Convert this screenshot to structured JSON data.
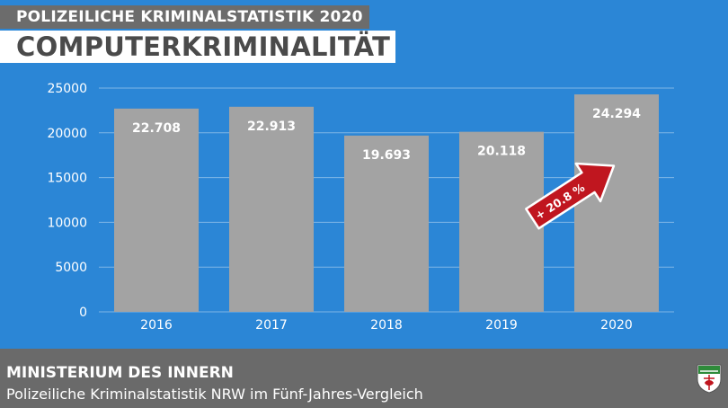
{
  "header": {
    "kicker": "POLIZEILICHE KRIMINALSTATISTIK 2020",
    "title": "COMPUTERKRIMINALITÄT"
  },
  "footer": {
    "ministry": "MINISTERIUM DES INNERN",
    "subline": "Polizeiliche Kriminalstatistik NRW im Fünf-Jahres-Vergleich",
    "crest_icon": "nrw-coat-of-arms-icon"
  },
  "colors": {
    "background": "#2b86d6",
    "bar": "#a3a3a3",
    "arrow": "#c0161f",
    "footer": "#6a6a6a"
  },
  "chart_data": {
    "type": "bar",
    "categories": [
      "2016",
      "2017",
      "2018",
      "2019",
      "2020"
    ],
    "values": [
      22708,
      22913,
      19693,
      20118,
      24294
    ],
    "value_labels": [
      "22.708",
      "22.913",
      "19.693",
      "20.118",
      "24.294"
    ],
    "yticks": [
      0,
      5000,
      10000,
      15000,
      20000,
      25000
    ],
    "ylim": [
      0,
      25000
    ],
    "grid": true,
    "annotation": {
      "text": "+ 20.8 %",
      "category": "2020"
    }
  }
}
